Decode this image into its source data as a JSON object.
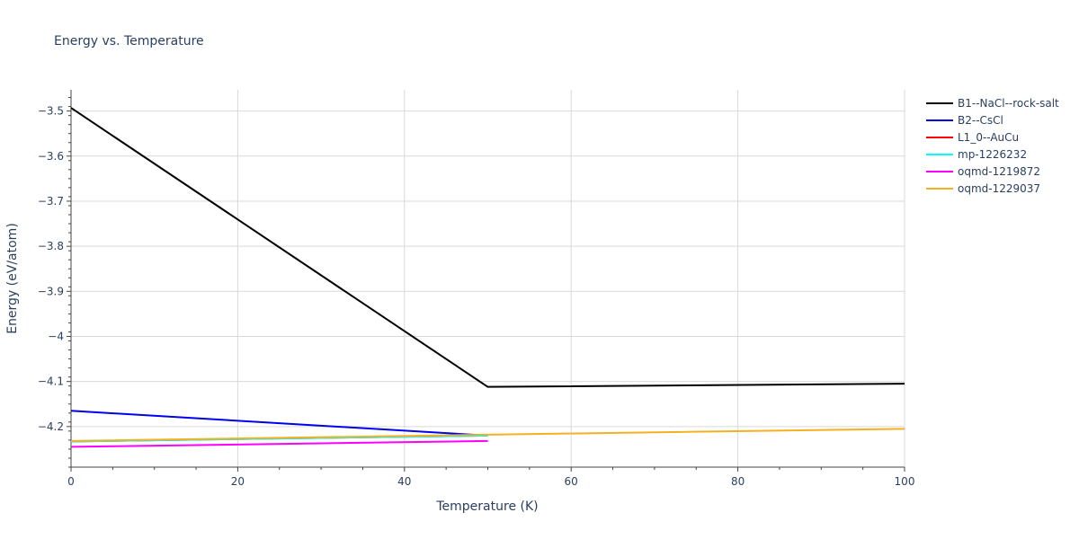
{
  "chart_data": {
    "type": "line",
    "title": "Energy vs. Temperature",
    "xlabel": "Temperature (K)",
    "ylabel": "Energy (eV/atom)",
    "xlim": [
      0,
      100
    ],
    "ylim": [
      -4.29,
      -3.453
    ],
    "x_ticks": [
      0,
      20,
      40,
      60,
      80,
      100
    ],
    "x_tick_labels": [
      "0",
      "20",
      "40",
      "60",
      "80",
      "100"
    ],
    "y_ticks": [
      -3.5,
      -3.6,
      -3.7,
      -3.8,
      -3.9,
      -4.0,
      -4.1,
      -4.2
    ],
    "y_tick_labels": [
      "−3.5",
      "−3.6",
      "−3.7",
      "−3.8",
      "−3.9",
      "−4",
      "−4.1",
      "−4.2"
    ],
    "grid": true,
    "legend_position": "top-right",
    "series": [
      {
        "name": "B1--NaCl--rock-salt",
        "color": "#000000",
        "x": [
          0,
          50,
          100
        ],
        "y": [
          -3.493,
          -4.112,
          -4.105
        ]
      },
      {
        "name": "B2--CsCl",
        "color": "#0000ee",
        "x": [
          0,
          50
        ],
        "y": [
          -4.165,
          -4.22
        ]
      },
      {
        "name": "L1_0--AuCu",
        "color": "#ff0000",
        "x": [
          0,
          50
        ],
        "y": [
          -4.233,
          -4.22
        ]
      },
      {
        "name": "mp-1226232",
        "color": "#00ffff",
        "x": [
          0,
          50
        ],
        "y": [
          -4.233,
          -4.22
        ]
      },
      {
        "name": "oqmd-1219872",
        "color": "#ff00ff",
        "x": [
          0,
          50
        ],
        "y": [
          -4.245,
          -4.232
        ]
      },
      {
        "name": "oqmd-1229037",
        "color": "#f5b021",
        "x": [
          0,
          50,
          100
        ],
        "y": [
          -4.232,
          -4.218,
          -4.205
        ]
      }
    ]
  }
}
